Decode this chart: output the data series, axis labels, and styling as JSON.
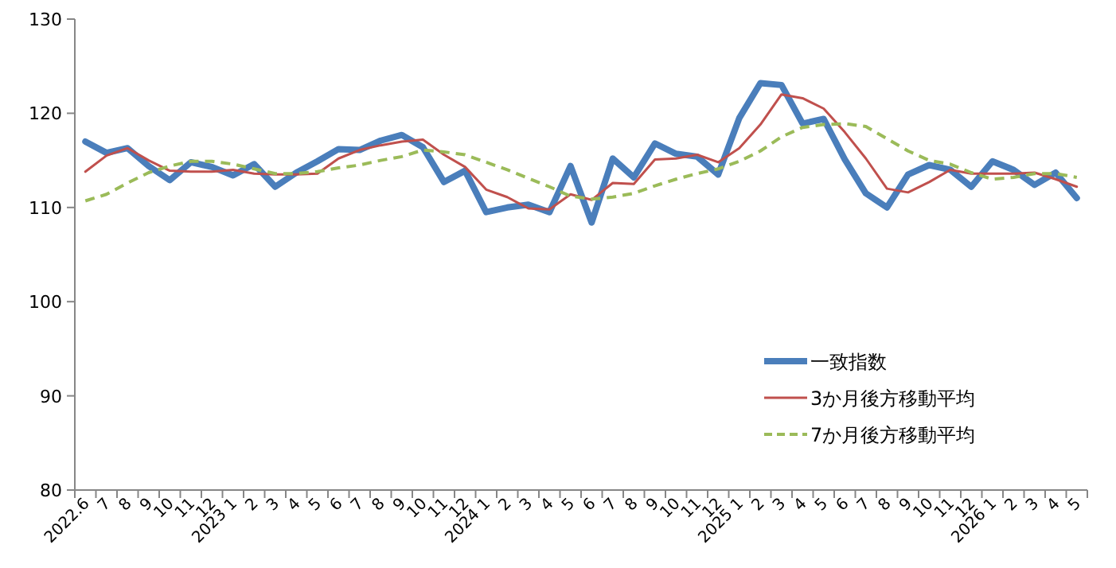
{
  "chart_data": {
    "type": "line",
    "categories": [
      "2022.6",
      "7",
      "8",
      "9",
      "10",
      "11",
      "12",
      "2023 1",
      "2",
      "3",
      "4",
      "5",
      "6",
      "7",
      "8",
      "9",
      "10",
      "11",
      "12",
      "2024 1",
      "2",
      "3",
      "4",
      "5",
      "6",
      "7",
      "8",
      "9",
      "10",
      "11",
      "12",
      "2025 1",
      "2",
      "3",
      "4",
      "5",
      "6",
      "7",
      "8",
      "9",
      "10",
      "11",
      "12",
      "2026 1",
      "2",
      "3",
      "4",
      "5"
    ],
    "series": [
      {
        "name": "一致指数",
        "color": "#4a7ebb",
        "line_style": "solid",
        "values": [
          117.0,
          115.8,
          116.3,
          114.4,
          112.9,
          114.8,
          114.3,
          113.4,
          114.6,
          112.2,
          113.7,
          114.9,
          116.2,
          116.1,
          117.1,
          117.7,
          116.4,
          112.7,
          113.9,
          109.5,
          110.0,
          110.3,
          109.5,
          114.4,
          108.4,
          115.2,
          113.2,
          116.8,
          115.7,
          115.4,
          113.5,
          119.5,
          123.2,
          123.0,
          118.9,
          119.4,
          115.1,
          111.5,
          110.0,
          113.5,
          114.5,
          114.0,
          112.2,
          114.9,
          114.0,
          112.4,
          113.7,
          111.0
        ]
      },
      {
        "name": "3か月後方移動平均",
        "color": "#c0504d",
        "line_style": "solid",
        "values": [
          113.8,
          115.5,
          116.3,
          115.0,
          113.9,
          113.8,
          113.8,
          114.0,
          113.6,
          113.5,
          113.5,
          113.6,
          115.2,
          116.1,
          116.6,
          117.0,
          117.2,
          115.6,
          114.3,
          111.9,
          111.1,
          109.9,
          109.8,
          111.4,
          110.8,
          112.6,
          112.5,
          115.1,
          115.2,
          115.6,
          114.8,
          116.3,
          118.8,
          122.0,
          121.6,
          120.5,
          118.0,
          115.2,
          112.0,
          111.6,
          112.7,
          114.0,
          113.6,
          113.6,
          113.6,
          113.7,
          113.0,
          112.2
        ]
      },
      {
        "name": "7か月後方移動平均",
        "color": "#9bbb59",
        "line_style": "dashed",
        "values": [
          110.7,
          111.4,
          112.6,
          113.7,
          114.4,
          114.9,
          114.9,
          114.6,
          114.1,
          113.6,
          113.6,
          113.8,
          114.2,
          114.5,
          115.0,
          115.4,
          116.1,
          115.9,
          115.6,
          114.8,
          114.0,
          113.1,
          112.2,
          111.2,
          110.9,
          111.1,
          111.5,
          112.3,
          113.0,
          113.6,
          114.1,
          114.9,
          116.0,
          117.5,
          118.5,
          118.8,
          118.9,
          118.6,
          117.3,
          116.0,
          115.0,
          114.6,
          113.7,
          113.0,
          113.2,
          113.6,
          113.6,
          113.2
        ]
      }
    ],
    "ylim": [
      80,
      130
    ],
    "yticks": [
      80,
      90,
      100,
      110,
      120,
      130
    ],
    "grid": false,
    "legend": "bottom right",
    "marker": "none"
  }
}
